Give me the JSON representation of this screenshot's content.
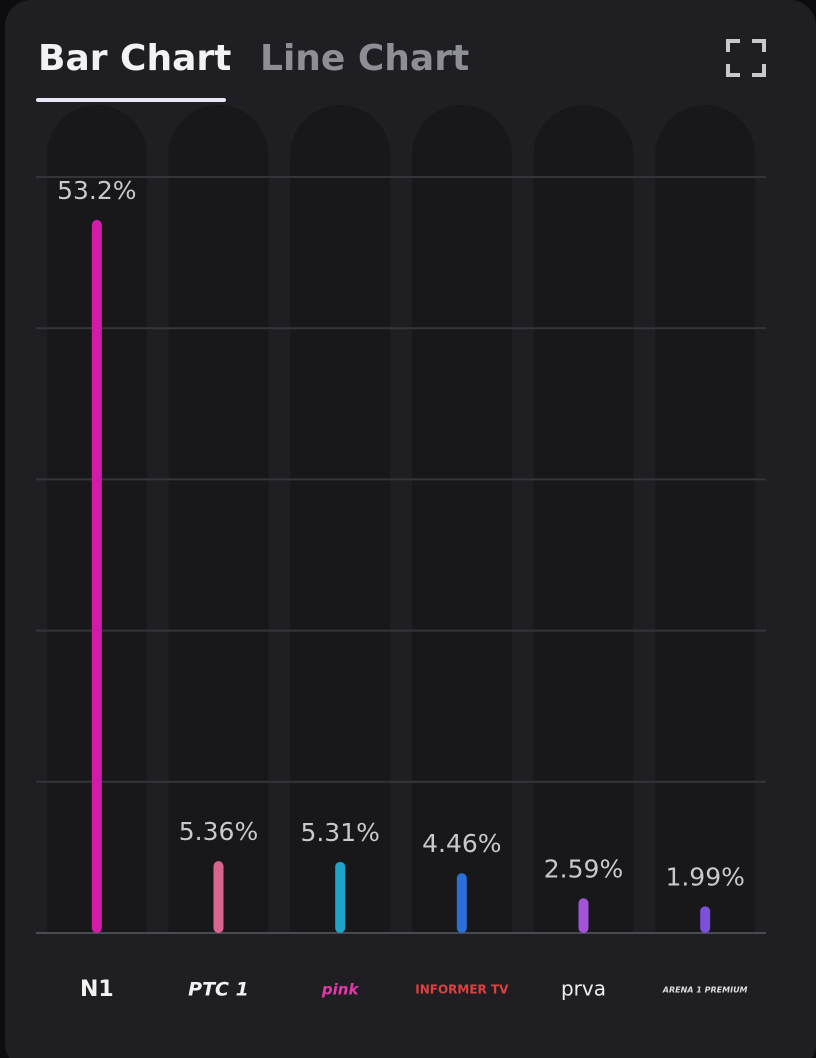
{
  "tabs": [
    "Bar Chart",
    "Line Chart"
  ],
  "chart_data": {
    "type": "bar",
    "categories": [
      "N1",
      "РТС 1",
      "pink",
      "INFORMER TV",
      "prva",
      "ARENA 1 PREMIUM"
    ],
    "values": [
      53.2,
      5.36,
      5.31,
      4.46,
      2.59,
      1.99
    ],
    "value_labels": [
      "53.2%",
      "5.36%",
      "5.31%",
      "4.46%",
      "2.59%",
      "1.99%"
    ],
    "colors": [
      "#d21ba9",
      "#d9648f",
      "#1ea4c9",
      "#2b70d9",
      "#a253d9",
      "#7b50da"
    ],
    "ylim": [
      0,
      56.4
    ],
    "yticks": [
      0,
      11.28,
      22.56,
      33.84,
      45.12,
      56.4
    ],
    "grid": true
  }
}
